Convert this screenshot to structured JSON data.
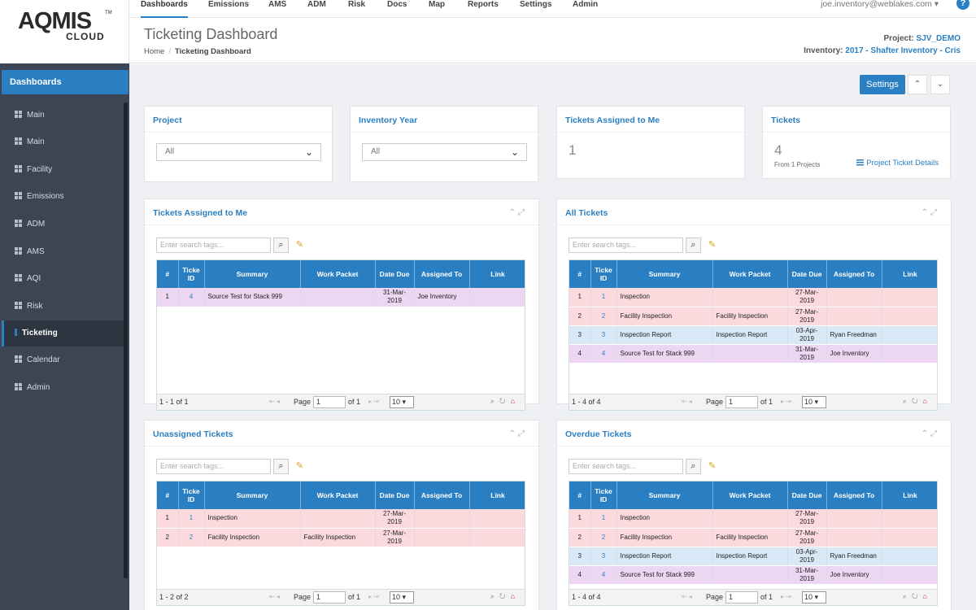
{
  "logo": {
    "line1": "AQMIS",
    "line2": "CLOUD",
    "tm": "TM"
  },
  "topnav": {
    "items": [
      "Dashboards",
      "Emissions",
      "AMS",
      "ADM",
      "Risk",
      "Docs",
      "Map",
      "Reports",
      "Settings",
      "Admin"
    ],
    "user": "joe.inventory@weblakes.com ▾",
    "help": "?"
  },
  "header": {
    "title": "Ticketing Dashboard",
    "breadcrumb_home": "Home",
    "breadcrumb_current": "Ticketing Dashboard",
    "project_label": "Project:",
    "project_value": "SJV_DEMO",
    "inventory_label": "Inventory:",
    "inventory_value": "2017 - Shafter Inventory - Cris"
  },
  "sidebar": {
    "heading": "Dashboards",
    "items": [
      "Main",
      "Main",
      "Facility",
      "Emissions",
      "ADM",
      "AMS",
      "AQI",
      "Risk",
      "Ticketing",
      "Calendar",
      "Admin"
    ],
    "active": "Ticketing"
  },
  "toolbar": {
    "settings": "Settings",
    "up": "⌃",
    "down": "⌄"
  },
  "filters": {
    "project": {
      "title": "Project",
      "value": "All"
    },
    "year": {
      "title": "Inventory Year",
      "value": "All"
    },
    "assigned": {
      "title": "Tickets Assigned to Me",
      "value": "1"
    },
    "tickets": {
      "title": "Tickets",
      "value": "4",
      "sub": "From 1 Projects",
      "link": "Project Ticket Details"
    }
  },
  "columns": [
    "#",
    "Ticke ID",
    "Summary",
    "Work Packet",
    "Date Due",
    "Assigned To",
    "Link"
  ],
  "search_placeholder": "Enter search tags...",
  "pager": {
    "page_label": "Page",
    "of_label": "of 1",
    "page_value": "1",
    "rows": "10"
  },
  "panels": [
    {
      "title": "Tickets Assigned to Me",
      "count": "1 - 1 of 1",
      "rows": [
        {
          "n": "1",
          "id": "4",
          "summary": "Source Test for Stack 999",
          "wp": "",
          "due": "31-Mar-2019",
          "to": "Joe Inventory",
          "color": "purp"
        }
      ]
    },
    {
      "title": "All Tickets",
      "count": "1 - 4 of 4",
      "rows": [
        {
          "n": "1",
          "id": "1",
          "summary": "Inspection",
          "wp": "",
          "due": "27-Mar-2019",
          "to": "",
          "color": "pink"
        },
        {
          "n": "2",
          "id": "2",
          "summary": "Facility Inspection",
          "wp": "Facility Inspection",
          "due": "27-Mar-2019",
          "to": "",
          "color": "pink"
        },
        {
          "n": "3",
          "id": "3",
          "summary": "Inspection Report",
          "wp": "Inspection Report",
          "due": "03-Apr-2019",
          "to": "Ryan Freedman",
          "color": "blue"
        },
        {
          "n": "4",
          "id": "4",
          "summary": "Source Test for Stack 999",
          "wp": "",
          "due": "31-Mar-2019",
          "to": "Joe Inventory",
          "color": "purp"
        }
      ]
    },
    {
      "title": "Unassigned Tickets",
      "count": "1 - 2 of 2",
      "rows": [
        {
          "n": "1",
          "id": "1",
          "summary": "Inspection",
          "wp": "",
          "due": "27-Mar-2019",
          "to": "",
          "color": "pink"
        },
        {
          "n": "2",
          "id": "2",
          "summary": "Facility Inspection",
          "wp": "Facility Inspection",
          "due": "27-Mar-2019",
          "to": "",
          "color": "pink"
        }
      ]
    },
    {
      "title": "Overdue Tickets",
      "count": "1 - 4 of 4",
      "rows": [
        {
          "n": "1",
          "id": "1",
          "summary": "Inspection",
          "wp": "",
          "due": "27-Mar-2019",
          "to": "",
          "color": "pink"
        },
        {
          "n": "2",
          "id": "2",
          "summary": "Facility Inspection",
          "wp": "Facility Inspection",
          "due": "27-Mar-2019",
          "to": "",
          "color": "pink"
        },
        {
          "n": "3",
          "id": "3",
          "summary": "Inspection Report",
          "wp": "Inspection Report",
          "due": "03-Apr-2019",
          "to": "Ryan Freedman",
          "color": "blue"
        },
        {
          "n": "4",
          "id": "4",
          "summary": "Source Test for Stack 999",
          "wp": "",
          "due": "31-Mar-2019",
          "to": "Joe Inventory",
          "color": "purp"
        }
      ]
    }
  ]
}
